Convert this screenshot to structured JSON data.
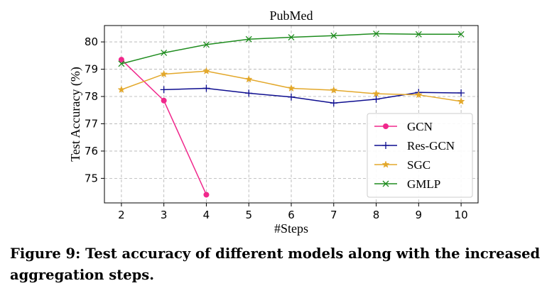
{
  "chart_data": {
    "type": "line",
    "title": "PubMed",
    "xlabel": "#Steps",
    "ylabel": "Test Accuracy (%)",
    "xlim": [
      1.6,
      10.4
    ],
    "ylim": [
      74.1,
      80.6
    ],
    "xticks": [
      2,
      3,
      4,
      5,
      6,
      7,
      8,
      9,
      10
    ],
    "yticks": [
      75,
      76,
      77,
      78,
      79,
      80
    ],
    "grid": true,
    "legend_position": "lower-right",
    "series": [
      {
        "name": "GCN",
        "color": "#f0288c",
        "marker": "circle",
        "x": [
          2,
          3,
          4
        ],
        "y": [
          79.35,
          77.85,
          74.4
        ]
      },
      {
        "name": "Res-GCN",
        "color": "#0d0d8f",
        "marker": "plus",
        "x": [
          3,
          4,
          5,
          6,
          7,
          8,
          9,
          10
        ],
        "y": [
          78.25,
          78.3,
          78.12,
          77.98,
          77.76,
          77.9,
          78.15,
          78.13
        ]
      },
      {
        "name": "SGC",
        "color": "#e3a82b",
        "marker": "star",
        "x": [
          2,
          3,
          4,
          5,
          6,
          7,
          8,
          9,
          10
        ],
        "y": [
          78.25,
          78.82,
          78.93,
          78.63,
          78.3,
          78.23,
          78.1,
          78.06,
          77.82
        ]
      },
      {
        "name": "GMLP",
        "color": "#1e8c1e",
        "marker": "x",
        "x": [
          2,
          3,
          4,
          5,
          6,
          7,
          8,
          9,
          10
        ],
        "y": [
          79.2,
          79.6,
          79.9,
          80.1,
          80.17,
          80.23,
          80.3,
          80.28,
          80.28
        ]
      }
    ]
  },
  "caption": "Figure 9: Test accuracy of different models along with the increased aggregation steps."
}
